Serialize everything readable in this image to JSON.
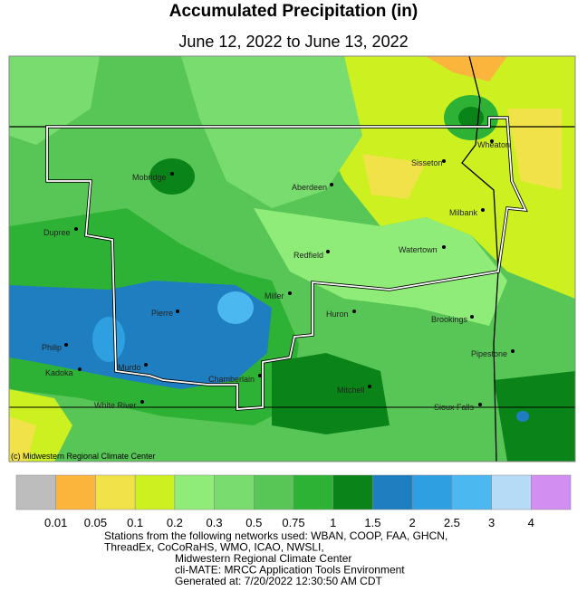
{
  "header": {
    "title": "Accumulated Precipitation (in)",
    "subtitle": "June 12, 2022 to June 13, 2022"
  },
  "map": {
    "credit": "(c) Midwestern Regional Climate Center",
    "cities": [
      "Wheaton",
      "Sisseton",
      "Aberdeen",
      "Mobridge",
      "Dupree",
      "Milbank",
      "Redfield",
      "Watertown",
      "Miller",
      "Pierre",
      "Huron",
      "Brookings",
      "Philip",
      "Pipestone",
      "Kadoka",
      "Murdo",
      "Chamberlain",
      "Mitchell",
      "White River",
      "Sioux Falls"
    ]
  },
  "legend": {
    "colors": [
      "#bdbdbd",
      "#fbb43c",
      "#f1e24a",
      "#cdf021",
      "#8fec78",
      "#78dc6e",
      "#58c656",
      "#2eb236",
      "#0a8418",
      "#1f7ebf",
      "#2e9fe0",
      "#4bb8f0",
      "#b6dbf6",
      "#d28ef0"
    ],
    "labels": [
      "0.01",
      "0.05",
      "0.1",
      "0.2",
      "0.3",
      "0.5",
      "0.75",
      "1",
      "1.5",
      "2",
      "2.5",
      "3",
      "4"
    ]
  },
  "footer": {
    "lines": [
      "Stations from the following networks used: WBAN, COOP, FAA, GHCN,",
      "ThreadEx, CoCoRaHS, WMO, ICAO, NWSLI,",
      "Midwestern Regional Climate Center",
      "cli-MATE: MRCC Application Tools Environment",
      "Generated at: 7/20/2022 12:30:50 AM CDT"
    ]
  }
}
